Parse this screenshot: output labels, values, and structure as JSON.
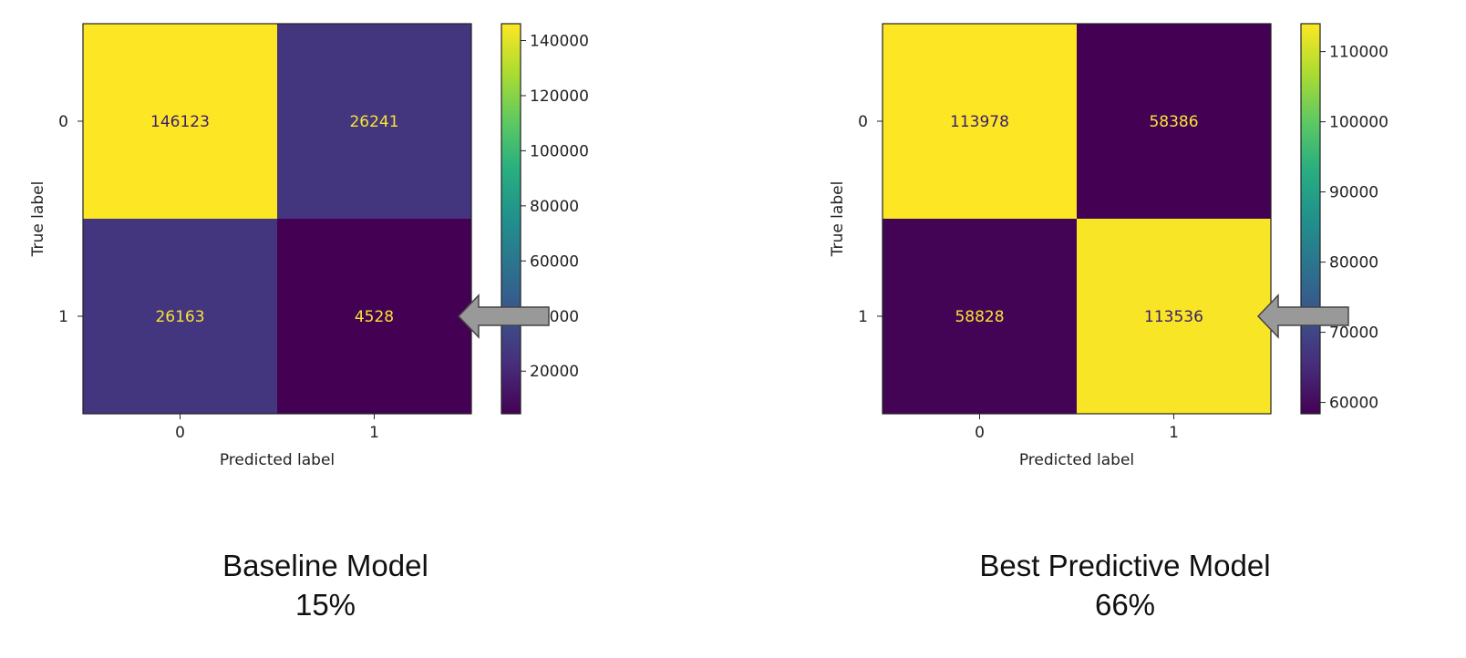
{
  "chart_data": [
    {
      "type": "heatmap",
      "title": "",
      "xlabel": "Predicted label",
      "ylabel": "True label",
      "x_categories": [
        "0",
        "1"
      ],
      "y_categories": [
        "0",
        "1"
      ],
      "matrix": [
        [
          146123,
          26241
        ],
        [
          26163,
          4528
        ]
      ],
      "colormap": "viridis",
      "colorbar": {
        "min": 4528,
        "max": 146123,
        "ticks": [
          20000,
          40000,
          60000,
          80000,
          100000,
          120000,
          140000
        ]
      },
      "arrow_target": {
        "row": 1,
        "col": 1
      },
      "caption": {
        "name": "Baseline Model",
        "score": "15%"
      }
    },
    {
      "type": "heatmap",
      "title": "",
      "xlabel": "Predicted label",
      "ylabel": "True label",
      "x_categories": [
        "0",
        "1"
      ],
      "y_categories": [
        "0",
        "1"
      ],
      "matrix": [
        [
          113978,
          58386
        ],
        [
          58828,
          113536
        ]
      ],
      "colormap": "viridis",
      "colorbar": {
        "min": 58386,
        "max": 113978,
        "ticks": [
          60000,
          70000,
          80000,
          90000,
          100000,
          110000
        ]
      },
      "arrow_target": {
        "row": 1,
        "col": 1
      },
      "caption": {
        "name": "Best Predictive Model",
        "score": "66%"
      }
    }
  ],
  "colors": {
    "arrow_fill": "#999999",
    "arrow_stroke": "#444444",
    "text_on_dark": "#f7e436",
    "text_on_light": "#3b1c6e"
  }
}
